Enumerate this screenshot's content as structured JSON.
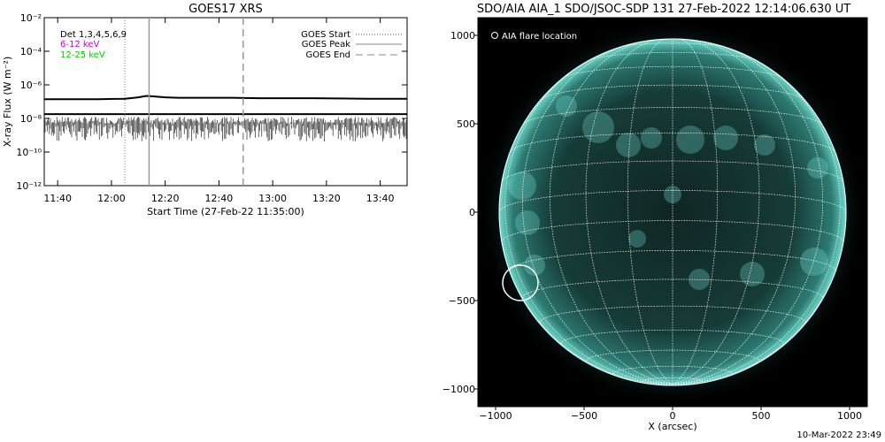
{
  "chart_data": [
    {
      "type": "line",
      "title": "GOES17 XRS",
      "xlabel": "Start Time (27-Feb-22 11:35:00)",
      "ylabel": "X-ray Flux (W m⁻²)",
      "x_ticks": [
        "11:40",
        "12:00",
        "12:20",
        "12:40",
        "13:00",
        "13:20",
        "13:40"
      ],
      "x_tick_minutes": [
        5,
        25,
        45,
        65,
        85,
        105,
        125
      ],
      "x_range_minutes": [
        0,
        135
      ],
      "y_ticks": [
        "10⁻²",
        "10⁻⁴",
        "10⁻⁶",
        "10⁻⁸",
        "10⁻¹⁰",
        "10⁻¹²"
      ],
      "y_tick_exponents": [
        -2,
        -4,
        -6,
        -8,
        -10,
        -12
      ],
      "ylim": [
        1e-12,
        0.01
      ],
      "log_y": true,
      "labels": {
        "det": "Det 1,3,4,5,6,9",
        "band1": "6-12 keV",
        "band2": "12-25 keV"
      },
      "colors": {
        "band1": "#cc00cc",
        "band2": "#00cc00",
        "flux": "#000000"
      },
      "legend": {
        "placement": "top-right",
        "entries": [
          {
            "label": "GOES Start",
            "style": "dotted"
          },
          {
            "label": "GOES Peak",
            "style": "solid"
          },
          {
            "label": "GOES End",
            "style": "dashed"
          }
        ]
      },
      "events": {
        "start": "12:05",
        "peak": "12:14",
        "end": "12:49"
      },
      "event_minutes": {
        "start": 30,
        "peak": 39,
        "end": 74
      },
      "series": [
        {
          "x": [
            0,
            10,
            20,
            30,
            35,
            38,
            40,
            45,
            50,
            60,
            70,
            80,
            90,
            100,
            110,
            120,
            130,
            135
          ],
          "y": [
            1.4e-07,
            1.4e-07,
            1.4e-07,
            1.5e-07,
            1.8e-07,
            2.2e-07,
            2.1e-07,
            1.8e-07,
            1.7e-07,
            1.7e-07,
            1.7e-07,
            1.6e-07,
            1.6e-07,
            1.6e-07,
            1.55e-07,
            1.5e-07,
            1.5e-07,
            1.5e-07
          ]
        },
        {
          "x": [
            0,
            135
          ],
          "y": [
            5e-09,
            5e-09
          ],
          "y_spread_decades": [
            -1.2,
            0.4
          ]
        }
      ]
    },
    {
      "type": "heatmap",
      "title": "SDO/AIA AIA_1 SDO/JSOC-SDP 131 27-Feb-2022 12:14:06.630 UT",
      "xlabel": "X (arcsec)",
      "ylabel": "",
      "x_ticks": [
        "−1000",
        "−500",
        "0",
        "500",
        "1000"
      ],
      "x_tick_values": [
        -1000,
        -500,
        0,
        500,
        1000
      ],
      "y_ticks": [
        "1000",
        "500",
        "0",
        "−500",
        "−1000"
      ],
      "y_tick_values": [
        1000,
        500,
        0,
        -500,
        -1000
      ],
      "xlim": [
        -1100,
        1100
      ],
      "ylim": [
        -1100,
        1100
      ],
      "solar_radius_arcsec": 980,
      "flare_label": "AIA flare location",
      "flare_location_arcsec": [
        -860,
        -400
      ],
      "flare_circle_radius_arcsec": 100,
      "colors": {
        "disk_dark": "#0b1c1a",
        "disk_mid": "#1e524c",
        "limb": "#5fcfc2",
        "bright": "#7ff0e2",
        "background": "#000000",
        "grid": "#ffffff"
      }
    }
  ],
  "footer": "10-Mar-2022 23:49"
}
